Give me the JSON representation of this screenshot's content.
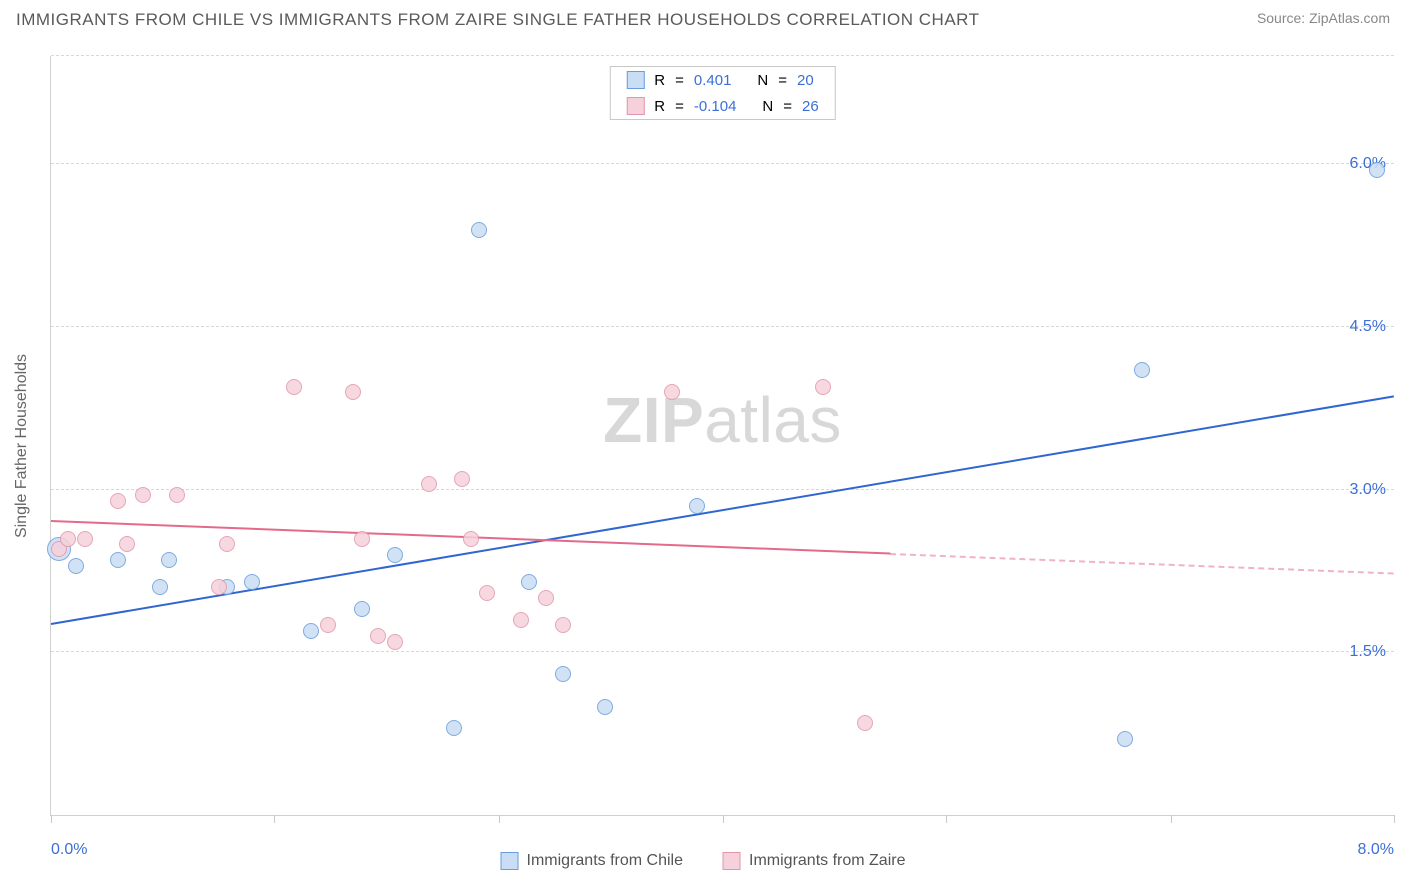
{
  "header": {
    "title": "IMMIGRANTS FROM CHILE VS IMMIGRANTS FROM ZAIRE SINGLE FATHER HOUSEHOLDS CORRELATION CHART",
    "source": "Source: ZipAtlas.com"
  },
  "watermark": {
    "prefix": "ZIP",
    "suffix": "atlas"
  },
  "ylabel": "Single Father Households",
  "chart": {
    "type": "scatter",
    "xlim": [
      0.0,
      8.0
    ],
    "ylim": [
      0.0,
      7.0
    ],
    "x_ticklabels": [
      "0.0%",
      "8.0%"
    ],
    "y_ticks": [
      1.5,
      3.0,
      4.5,
      6.0
    ],
    "y_ticklabels": [
      "1.5%",
      "3.0%",
      "4.5%",
      "6.0%"
    ],
    "x_minor_ticks": [
      0.0,
      1.33,
      2.67,
      4.0,
      5.33,
      6.67,
      8.0
    ],
    "grid_color": "#d8d8d8",
    "background_color": "#ffffff",
    "marker_radius": 8,
    "marker_radius_large": 12,
    "marker_stroke_width": 1.5,
    "trend_line_width": 2
  },
  "series": [
    {
      "name": "Immigrants from Chile",
      "fill": "#c9ddf4",
      "stroke": "#6a9cde",
      "line_color": "#2f66d0",
      "R": "0.401",
      "N": "20",
      "trend": {
        "x1": 0.0,
        "y1": 1.75,
        "x2": 8.0,
        "y2": 3.85,
        "dashed_from": 8.0
      },
      "points": [
        {
          "x": 0.05,
          "y": 2.45,
          "r": 12
        },
        {
          "x": 0.15,
          "y": 2.3
        },
        {
          "x": 0.4,
          "y": 2.35
        },
        {
          "x": 0.7,
          "y": 2.35
        },
        {
          "x": 0.65,
          "y": 2.1
        },
        {
          "x": 1.05,
          "y": 2.1
        },
        {
          "x": 1.2,
          "y": 2.15
        },
        {
          "x": 1.55,
          "y": 1.7
        },
        {
          "x": 1.85,
          "y": 1.9
        },
        {
          "x": 2.05,
          "y": 2.4
        },
        {
          "x": 2.55,
          "y": 5.4
        },
        {
          "x": 2.4,
          "y": 0.8
        },
        {
          "x": 2.85,
          "y": 2.15
        },
        {
          "x": 3.05,
          "y": 1.3
        },
        {
          "x": 3.3,
          "y": 1.0
        },
        {
          "x": 3.85,
          "y": 2.85
        },
        {
          "x": 6.5,
          "y": 4.1
        },
        {
          "x": 6.4,
          "y": 0.7
        },
        {
          "x": 7.9,
          "y": 5.95
        }
      ]
    },
    {
      "name": "Immigrants from Zaire",
      "fill": "#f6d1db",
      "stroke": "#e197ab",
      "line_color": "#e36a8a",
      "R": "-0.104",
      "N": "26",
      "trend": {
        "x1": 0.0,
        "y1": 2.7,
        "x2": 5.0,
        "y2": 2.4,
        "dashed_from": 5.0,
        "x3": 8.0,
        "y3": 2.22
      },
      "points": [
        {
          "x": 0.05,
          "y": 2.45
        },
        {
          "x": 0.1,
          "y": 2.55
        },
        {
          "x": 0.2,
          "y": 2.55
        },
        {
          "x": 0.4,
          "y": 2.9
        },
        {
          "x": 0.55,
          "y": 2.95
        },
        {
          "x": 0.75,
          "y": 2.95
        },
        {
          "x": 0.45,
          "y": 2.5
        },
        {
          "x": 1.0,
          "y": 2.1
        },
        {
          "x": 1.05,
          "y": 2.5
        },
        {
          "x": 1.45,
          "y": 3.95
        },
        {
          "x": 1.65,
          "y": 1.75
        },
        {
          "x": 1.8,
          "y": 3.9
        },
        {
          "x": 1.95,
          "y": 1.65
        },
        {
          "x": 1.85,
          "y": 2.55
        },
        {
          "x": 2.05,
          "y": 1.6
        },
        {
          "x": 2.25,
          "y": 3.05
        },
        {
          "x": 2.45,
          "y": 3.1
        },
        {
          "x": 2.5,
          "y": 2.55
        },
        {
          "x": 2.6,
          "y": 2.05
        },
        {
          "x": 2.8,
          "y": 1.8
        },
        {
          "x": 2.95,
          "y": 2.0
        },
        {
          "x": 3.05,
          "y": 1.75
        },
        {
          "x": 3.7,
          "y": 3.9
        },
        {
          "x": 4.6,
          "y": 3.95
        },
        {
          "x": 4.85,
          "y": 0.85
        }
      ]
    }
  ],
  "legend_bottom": [
    {
      "label": "Immigrants from Chile",
      "fill": "#c9ddf4",
      "stroke": "#6a9cde"
    },
    {
      "label": "Immigrants from Zaire",
      "fill": "#f6d1db",
      "stroke": "#e197ab"
    }
  ],
  "legend_top": {
    "r_label": "R",
    "n_label": "N",
    "eq": "="
  }
}
